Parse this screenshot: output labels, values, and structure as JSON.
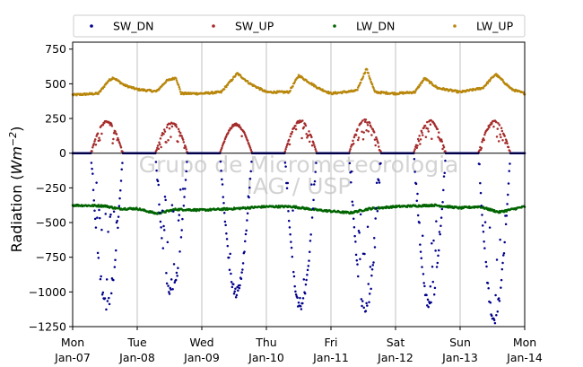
{
  "chart_data": {
    "type": "scatter",
    "title": "",
    "ylabel_prefix": "Radiation",
    "ylabel_unit_base": "Wm",
    "ylabel_unit_exp": "−2",
    "xlabel": "",
    "ylim": [
      -1250,
      800
    ],
    "yticks": [
      750,
      500,
      250,
      0,
      -250,
      -500,
      -750,
      -1000,
      -1250
    ],
    "ytick_labels": [
      "750",
      "500",
      "250",
      "0",
      "−250",
      "−500",
      "−750",
      "−1000",
      "−1250"
    ],
    "xlim_days": [
      0,
      7
    ],
    "xticks": [
      {
        "day": 0,
        "line1": "Mon",
        "line2": "Jan-07"
      },
      {
        "day": 1,
        "line1": "Tue",
        "line2": "Jan-08"
      },
      {
        "day": 2,
        "line1": "Wed",
        "line2": "Jan-09"
      },
      {
        "day": 3,
        "line1": "Thu",
        "line2": "Jan-10"
      },
      {
        "day": 4,
        "line1": "Fri",
        "line2": "Jan-11"
      },
      {
        "day": 5,
        "line1": "Sat",
        "line2": "Jan-12"
      },
      {
        "day": 6,
        "line1": "Sun",
        "line2": "Jan-13"
      },
      {
        "day": 7,
        "line1": "Mon",
        "line2": "Jan-14"
      }
    ],
    "grid": "x-only",
    "legend_position": "top",
    "zero_line": true,
    "watermark_line1": "Grupo de Micrometeorologia",
    "watermark_line2": "IAG / USP",
    "series": [
      {
        "name": "SW_DN",
        "color": "#00008b",
        "peaks": [
          -1130,
          -1050,
          -1040,
          -1150,
          -1160,
          -1150,
          -1230
        ],
        "noise": [
          0.35,
          0.45,
          0.08,
          0.3,
          0.45,
          0.45,
          0.35
        ]
      },
      {
        "name": "SW_UP",
        "color": "#a52a2a",
        "peaks": [
          235,
          230,
          215,
          240,
          245,
          240,
          235
        ],
        "noise": [
          0.3,
          0.4,
          0.06,
          0.3,
          0.45,
          0.4,
          0.3
        ]
      },
      {
        "name": "LW_DN",
        "color": "#006400",
        "points": [
          [
            0,
            -375
          ],
          [
            0.5,
            -380
          ],
          [
            0.7,
            -400
          ],
          [
            1.0,
            -400
          ],
          [
            1.3,
            -435
          ],
          [
            1.6,
            -405
          ],
          [
            2.0,
            -410
          ],
          [
            2.5,
            -400
          ],
          [
            3.0,
            -385
          ],
          [
            3.4,
            -385
          ],
          [
            3.8,
            -410
          ],
          [
            4.3,
            -430
          ],
          [
            4.6,
            -400
          ],
          [
            5.0,
            -385
          ],
          [
            5.6,
            -375
          ],
          [
            6.0,
            -395
          ],
          [
            6.3,
            -385
          ],
          [
            6.6,
            -425
          ],
          [
            7.0,
            -385
          ]
        ]
      },
      {
        "name": "LW_UP",
        "color": "#b8860b",
        "points": [
          [
            0,
            420
          ],
          [
            0.4,
            430
          ],
          [
            0.55,
            520
          ],
          [
            0.63,
            545
          ],
          [
            0.8,
            490
          ],
          [
            1.0,
            460
          ],
          [
            1.3,
            445
          ],
          [
            1.45,
            520
          ],
          [
            1.6,
            545
          ],
          [
            1.68,
            430
          ],
          [
            2.0,
            430
          ],
          [
            2.3,
            440
          ],
          [
            2.55,
            575
          ],
          [
            2.75,
            500
          ],
          [
            3.0,
            440
          ],
          [
            3.35,
            440
          ],
          [
            3.5,
            560
          ],
          [
            3.8,
            470
          ],
          [
            4.0,
            430
          ],
          [
            4.4,
            450
          ],
          [
            4.55,
            610
          ],
          [
            4.68,
            440
          ],
          [
            5.0,
            430
          ],
          [
            5.3,
            440
          ],
          [
            5.45,
            540
          ],
          [
            5.65,
            470
          ],
          [
            6.0,
            440
          ],
          [
            6.35,
            470
          ],
          [
            6.55,
            570
          ],
          [
            6.8,
            460
          ],
          [
            7.0,
            430
          ]
        ]
      }
    ]
  }
}
